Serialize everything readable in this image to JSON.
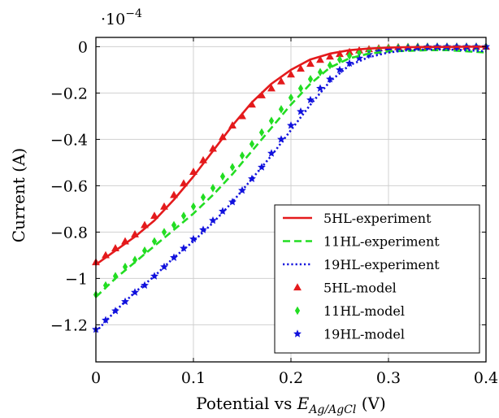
{
  "chart_data": {
    "type": "line",
    "title": "",
    "xlabel": {
      "prefix": "Potential vs ",
      "sym": "E",
      "sub": "Ag/AgCl",
      "suffix": " (V)"
    },
    "ylabel": "Current (A)",
    "y_multiplier_label": {
      "base": "·10",
      "exp": "−4"
    },
    "xlim": [
      0,
      0.4
    ],
    "ylim": [
      -1.36,
      0.04
    ],
    "grid": true,
    "legend_position": "bottom-right",
    "x_ticks": [
      0,
      0.1,
      0.2,
      0.3,
      0.4
    ],
    "x_tick_labels": [
      "0",
      "0.1",
      "0.2",
      "0.3",
      "0.4"
    ],
    "y_ticks": [
      0,
      -0.2,
      -0.4,
      -0.6,
      -0.8,
      -1,
      -1.2
    ],
    "y_tick_labels": [
      "0",
      "−0.2",
      "−0.4",
      "−0.6",
      "−0.8",
      "−1",
      "−1.2"
    ],
    "series": [
      {
        "name": "5HL-experiment",
        "kind": "line",
        "dash": "solid",
        "color": "#e41a1c",
        "x": [
          0,
          0.02,
          0.04,
          0.06,
          0.08,
          0.1,
          0.12,
          0.14,
          0.16,
          0.18,
          0.2,
          0.22,
          0.24,
          0.26,
          0.28,
          0.3,
          0.32,
          0.34,
          0.36,
          0.38,
          0.4
        ],
        "y": [
          -0.94,
          -0.88,
          -0.82,
          -0.75,
          -0.66,
          -0.56,
          -0.45,
          -0.34,
          -0.24,
          -0.16,
          -0.1,
          -0.055,
          -0.03,
          -0.015,
          -0.008,
          -0.004,
          -0.002,
          -0.001,
          -0.001,
          0,
          0
        ]
      },
      {
        "name": "11HL-experiment",
        "kind": "line",
        "dash": "dashed",
        "color": "#22dd22",
        "x": [
          0,
          0.02,
          0.04,
          0.06,
          0.08,
          0.1,
          0.12,
          0.14,
          0.16,
          0.18,
          0.2,
          0.22,
          0.24,
          0.26,
          0.28,
          0.3,
          0.32,
          0.34,
          0.36,
          0.38,
          0.4
        ],
        "y": [
          -1.08,
          -1.0,
          -0.93,
          -0.86,
          -0.79,
          -0.72,
          -0.64,
          -0.55,
          -0.45,
          -0.35,
          -0.25,
          -0.16,
          -0.09,
          -0.05,
          -0.03,
          -0.02,
          -0.018,
          -0.015,
          -0.015,
          -0.02,
          -0.025
        ]
      },
      {
        "name": "19HL-experiment",
        "kind": "line",
        "dash": "dotted",
        "color": "#1111dd",
        "x": [
          0,
          0.02,
          0.04,
          0.06,
          0.08,
          0.1,
          0.12,
          0.14,
          0.16,
          0.18,
          0.2,
          0.22,
          0.24,
          0.26,
          0.28,
          0.3,
          0.32,
          0.34,
          0.36,
          0.38,
          0.4
        ],
        "y": [
          -1.23,
          -1.14,
          -1.06,
          -0.99,
          -0.91,
          -0.84,
          -0.76,
          -0.67,
          -0.57,
          -0.47,
          -0.36,
          -0.25,
          -0.15,
          -0.08,
          -0.045,
          -0.025,
          -0.015,
          -0.012,
          -0.012,
          -0.015,
          -0.02
        ]
      },
      {
        "name": "5HL-model",
        "kind": "marker",
        "marker": "triangle",
        "color": "#e41a1c",
        "x": [
          0,
          0.01,
          0.02,
          0.03,
          0.04,
          0.05,
          0.06,
          0.07,
          0.08,
          0.09,
          0.1,
          0.11,
          0.12,
          0.13,
          0.14,
          0.15,
          0.16,
          0.17,
          0.18,
          0.19,
          0.2,
          0.21,
          0.22,
          0.23,
          0.24,
          0.25,
          0.26,
          0.27,
          0.28,
          0.29,
          0.3,
          0.31,
          0.32,
          0.33,
          0.34,
          0.35,
          0.36,
          0.37,
          0.38,
          0.39,
          0.4
        ],
        "y": [
          -0.93,
          -0.9,
          -0.87,
          -0.84,
          -0.81,
          -0.77,
          -0.73,
          -0.69,
          -0.64,
          -0.59,
          -0.54,
          -0.49,
          -0.44,
          -0.39,
          -0.34,
          -0.3,
          -0.25,
          -0.21,
          -0.18,
          -0.15,
          -0.12,
          -0.095,
          -0.074,
          -0.057,
          -0.043,
          -0.032,
          -0.023,
          -0.016,
          -0.011,
          -0.007,
          -0.004,
          -0.002,
          -0.001,
          0,
          0,
          0,
          0,
          0,
          0,
          0,
          0
        ]
      },
      {
        "name": "11HL-model",
        "kind": "marker",
        "marker": "diamond",
        "color": "#22dd22",
        "x": [
          0,
          0.01,
          0.02,
          0.03,
          0.04,
          0.05,
          0.06,
          0.07,
          0.08,
          0.09,
          0.1,
          0.11,
          0.12,
          0.13,
          0.14,
          0.15,
          0.16,
          0.17,
          0.18,
          0.19,
          0.2,
          0.21,
          0.22,
          0.23,
          0.24,
          0.25,
          0.26,
          0.27,
          0.28,
          0.29,
          0.3,
          0.31,
          0.32,
          0.33,
          0.34,
          0.35,
          0.36,
          0.37,
          0.38,
          0.39,
          0.4
        ],
        "y": [
          -1.07,
          -1.03,
          -0.99,
          -0.95,
          -0.92,
          -0.88,
          -0.84,
          -0.8,
          -0.77,
          -0.73,
          -0.69,
          -0.65,
          -0.61,
          -0.56,
          -0.52,
          -0.47,
          -0.42,
          -0.37,
          -0.32,
          -0.27,
          -0.22,
          -0.18,
          -0.14,
          -0.11,
          -0.08,
          -0.056,
          -0.039,
          -0.026,
          -0.017,
          -0.011,
          -0.007,
          -0.004,
          -0.002,
          -0.001,
          0,
          0,
          0,
          0,
          0,
          0,
          0
        ]
      },
      {
        "name": "19HL-model",
        "kind": "marker",
        "marker": "star",
        "color": "#1111dd",
        "x": [
          0,
          0.01,
          0.02,
          0.03,
          0.04,
          0.05,
          0.06,
          0.07,
          0.08,
          0.09,
          0.1,
          0.11,
          0.12,
          0.13,
          0.14,
          0.15,
          0.16,
          0.17,
          0.18,
          0.19,
          0.2,
          0.21,
          0.22,
          0.23,
          0.24,
          0.25,
          0.26,
          0.27,
          0.28,
          0.29,
          0.3,
          0.31,
          0.32,
          0.33,
          0.34,
          0.35,
          0.36,
          0.37,
          0.38,
          0.39,
          0.4
        ],
        "y": [
          -1.22,
          -1.18,
          -1.14,
          -1.1,
          -1.06,
          -1.03,
          -0.99,
          -0.95,
          -0.91,
          -0.87,
          -0.83,
          -0.79,
          -0.75,
          -0.71,
          -0.67,
          -0.62,
          -0.57,
          -0.52,
          -0.46,
          -0.4,
          -0.34,
          -0.28,
          -0.23,
          -0.18,
          -0.14,
          -0.1,
          -0.072,
          -0.05,
          -0.034,
          -0.022,
          -0.014,
          -0.008,
          -0.005,
          -0.003,
          -0.001,
          0,
          0,
          0,
          0,
          0,
          0
        ]
      }
    ]
  }
}
